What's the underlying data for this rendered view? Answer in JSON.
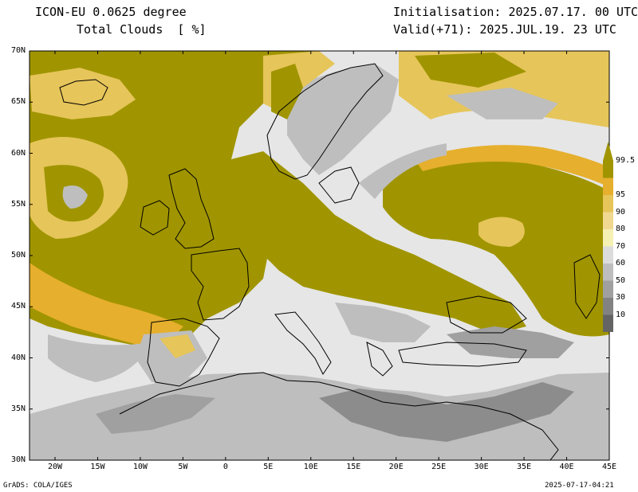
{
  "header": {
    "model": "ICON-EU 0.0625 degree",
    "field": "Total Clouds  [ %]",
    "initialisation": "Initialisation: 2025.07.17. 00 UTC",
    "valid": "Valid(+71): 2025.JUL.19. 23 UTC"
  },
  "axes": {
    "lat_labels": [
      "70N",
      "65N",
      "60N",
      "55N",
      "50N",
      "45N",
      "40N",
      "35N",
      "30N"
    ],
    "lon_labels": [
      "20W",
      "15W",
      "10W",
      "5W",
      "0",
      "5E",
      "10E",
      "15E",
      "20E",
      "25E",
      "30E",
      "35E",
      "40E",
      "45E"
    ]
  },
  "colorbar": {
    "labels": [
      "99.5",
      "95",
      "90",
      "80",
      "70",
      "60",
      "50",
      "30",
      "10"
    ],
    "colors": [
      "#a09500",
      "#e6af2d",
      "#e6c55a",
      "#f0d890",
      "#f5f0b4",
      "#dcdcdc",
      "#bebebe",
      "#a0a0a0",
      "#828282",
      "#646464"
    ]
  },
  "map": {
    "ocean_color": "#e6e6e6",
    "cloud_colors": {
      "overcast": "#a09500",
      "high": "#e6af2d",
      "medium": "#e6c55a",
      "light": "#f0d890",
      "grey": "#bebebe",
      "dark_grey": "#8c8c8c"
    }
  },
  "footer": {
    "left": "GrADS: COLA/IGES",
    "right": "2025-07-17-04:21"
  }
}
